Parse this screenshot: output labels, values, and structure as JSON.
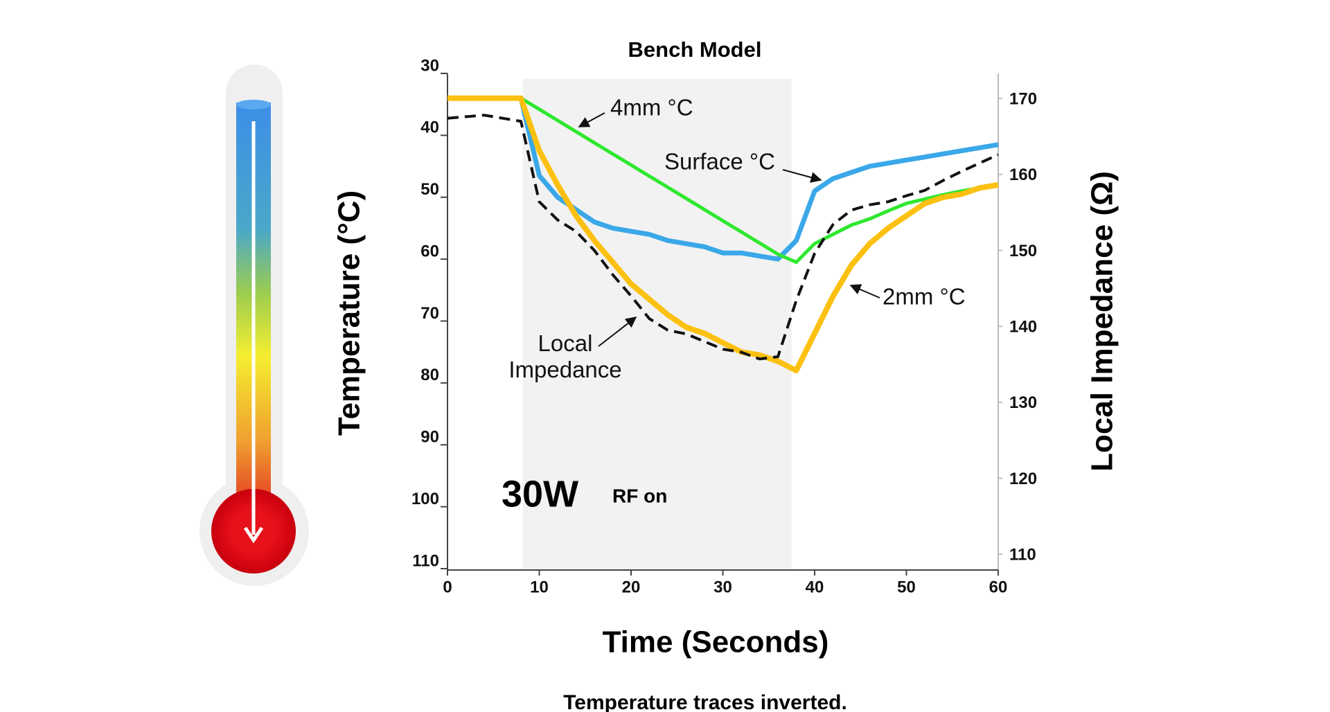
{
  "chart_data": {
    "type": "line",
    "title": "Bench Model",
    "xlabel": "Time (Seconds)",
    "ylabel": "Temperature (°C)",
    "y2label": "Local Impedance (Ω)",
    "x": [
      0,
      4,
      8,
      10,
      12,
      14,
      16,
      18,
      20,
      22,
      24,
      26,
      28,
      30,
      32,
      34,
      36,
      38,
      40,
      42,
      44,
      46,
      48,
      50,
      52,
      54,
      56,
      58,
      60
    ],
    "series": [
      {
        "name": "Surface °C",
        "color": "#3aa8e8",
        "values": [
          34,
          34,
          34,
          46.5,
          50,
          52,
          54,
          55,
          55.5,
          56,
          57,
          57.5,
          58,
          59,
          59,
          59.5,
          60,
          57,
          49,
          47,
          46,
          45,
          44.5,
          44,
          43.5,
          43,
          42.5,
          42,
          41.5
        ]
      },
      {
        "name": "4mm °C",
        "color": "#2ee82e",
        "values": [
          34,
          34,
          34,
          35.8,
          37.6,
          39.4,
          41.2,
          43,
          44.8,
          46.6,
          48.4,
          50.2,
          52,
          53.8,
          55.6,
          57.4,
          59.2,
          60.5,
          57.5,
          56,
          54.5,
          53.5,
          52.2,
          51,
          50.3,
          49.6,
          49,
          48.5,
          48
        ]
      },
      {
        "name": "2mm °C",
        "color": "#fcc010",
        "values": [
          34,
          34,
          34,
          42.5,
          48,
          53,
          57,
          60.5,
          64,
          66.5,
          69,
          71,
          72,
          73.5,
          75,
          75.5,
          76.5,
          78,
          72,
          66,
          61,
          57.5,
          55,
          53,
          51,
          50,
          49.5,
          48.5,
          48
        ]
      },
      {
        "name": "Local Impedance",
        "color": "#111111",
        "axis": "y2",
        "dashed": true,
        "values": [
          167.4,
          167.8,
          167,
          156.4,
          154,
          152.5,
          150,
          146.8,
          144,
          141,
          139.5,
          139,
          138,
          137,
          136.6,
          135.7,
          136,
          143.4,
          149.6,
          153.4,
          155.3,
          156,
          156.4,
          157.2,
          157.9,
          159.2,
          160.4,
          161.5,
          162.6
        ]
      }
    ],
    "xlim": [
      0,
      60
    ],
    "xticks": [
      0,
      10,
      20,
      30,
      40,
      50,
      60
    ],
    "ylim": [
      30,
      110
    ],
    "yticks": [
      30,
      40,
      50,
      60,
      70,
      80,
      90,
      100,
      110
    ],
    "y_inverted": true,
    "y2lim": [
      108.1,
      173.3
    ],
    "y2ticks": [
      110,
      120,
      130,
      140,
      150,
      160,
      170
    ],
    "shaded_region": [
      8.2,
      37.5
    ],
    "power_label": "30W",
    "rf_label": "RF on",
    "footnote": "Temperature traces inverted."
  }
}
